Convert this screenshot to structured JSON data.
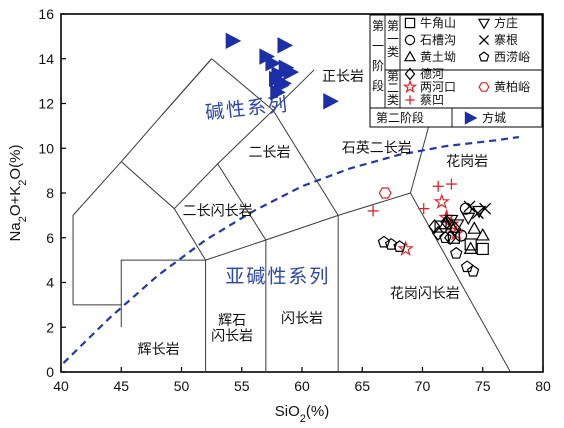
{
  "chart_data": {
    "type": "scatter",
    "title": "",
    "xlabel": "SiO2(%)",
    "ylabel": "Na2O+K2O(%)",
    "xlim": [
      40,
      80
    ],
    "ylim": [
      0,
      16
    ],
    "x_ticks": [
      40,
      45,
      50,
      55,
      60,
      65,
      70,
      75,
      80
    ],
    "y_ticks": [
      0,
      2,
      4,
      6,
      8,
      10,
      12,
      14,
      16
    ],
    "grid": false,
    "legend_position": "top-right",
    "field_labels": [
      {
        "text": "正长岩",
        "x": 63.4,
        "y": 13.0
      },
      {
        "text": "二长岩",
        "x": 57.3,
        "y": 9.6
      },
      {
        "text": "石英二长岩",
        "x": 66.2,
        "y": 9.8
      },
      {
        "text": "花岗岩",
        "x": 73.7,
        "y": 9.2
      },
      {
        "text": "二长闪长岩",
        "x": 53.0,
        "y": 7.0
      },
      {
        "text": "花岗闪长岩",
        "x": 70.2,
        "y": 3.3
      },
      {
        "text": "闪长岩",
        "x": 60.0,
        "y": 2.2
      },
      {
        "text": "辉石",
        "x": 54.2,
        "y": 2.1
      },
      {
        "text": "闪长岩",
        "x": 54.2,
        "y": 1.4
      },
      {
        "text": "辉长岩",
        "x": 48.1,
        "y": 0.8
      }
    ],
    "series_labels": [
      {
        "text": "碱性系列",
        "x": 55.5,
        "y": 11.5,
        "rotate": -6
      },
      {
        "text": "亚碱性系列",
        "x": 58.0,
        "y": 4.0,
        "rotate": 0
      }
    ],
    "alkaline_divider": [
      [
        40.2,
        0.4
      ],
      [
        44,
        2.4
      ],
      [
        48,
        4.3
      ],
      [
        52,
        5.9
      ],
      [
        56,
        7.2
      ],
      [
        60,
        8.3
      ],
      [
        64,
        9.1
      ],
      [
        68,
        9.7
      ],
      [
        72,
        10.1
      ],
      [
        76,
        10.35
      ],
      [
        78,
        10.5
      ]
    ],
    "field_boundaries": [
      [
        [
          41,
          3
        ],
        [
          41,
          7
        ],
        [
          45,
          9.4
        ],
        [
          48.4,
          11.5
        ],
        [
          52.5,
          14
        ]
      ],
      [
        [
          45,
          2
        ],
        [
          45,
          5
        ],
        [
          52,
          5
        ],
        [
          57,
          5.9
        ],
        [
          63,
          7
        ],
        [
          69,
          8
        ]
      ],
      [
        [
          45,
          9.4
        ],
        [
          49.4,
          7.3
        ],
        [
          53,
          9.3
        ],
        [
          57.6,
          11.7
        ],
        [
          61,
          13.5
        ]
      ],
      [
        [
          49.4,
          7.3
        ],
        [
          52,
          5
        ]
      ],
      [
        [
          53,
          9.3
        ],
        [
          57,
          5.9
        ]
      ],
      [
        [
          57.6,
          11.7
        ],
        [
          63,
          7
        ]
      ],
      [
        [
          52,
          0
        ],
        [
          52,
          5
        ]
      ],
      [
        [
          57,
          0
        ],
        [
          57,
          5.9
        ]
      ],
      [
        [
          63,
          0
        ],
        [
          63,
          7
        ]
      ],
      [
        [
          69,
          8
        ],
        [
          71.8,
          13.5
        ]
      ],
      [
        [
          69,
          8
        ],
        [
          77.3,
          0
        ]
      ],
      [
        [
          41,
          3
        ],
        [
          45,
          3
        ]
      ],
      [
        [
          48.4,
          11.5
        ],
        [
          52.5,
          14
        ]
      ],
      [
        [
          52.5,
          14
        ],
        [
          57.6,
          11.7
        ]
      ]
    ],
    "legend": {
      "stage1_label": "第一阶段",
      "subclass1_label": "第一类",
      "subclass2_label": "第二类",
      "stage2_label": "第二阶段",
      "entries": [
        {
          "name": "牛角山",
          "marker": "square",
          "color": "#000000"
        },
        {
          "name": "方庄",
          "marker": "triangle-down",
          "color": "#000000"
        },
        {
          "name": "石槽沟",
          "marker": "circle",
          "color": "#000000"
        },
        {
          "name": "寨根",
          "marker": "x",
          "color": "#000000"
        },
        {
          "name": "黄土坳",
          "marker": "triangle-up",
          "color": "#000000"
        },
        {
          "name": "西涝峪",
          "marker": "pentagon",
          "color": "#000000"
        },
        {
          "name": "德河",
          "marker": "diamond",
          "color": "#000000"
        },
        {
          "name": "两河口",
          "marker": "star",
          "color": "#d9262b"
        },
        {
          "name": "黄柏峪",
          "marker": "hexagon",
          "color": "#d9262b"
        },
        {
          "name": "蔡凹",
          "marker": "plus",
          "color": "#d9262b"
        },
        {
          "name": "方城",
          "marker": "triangle-right",
          "color": "#1c2fa8"
        }
      ]
    },
    "series": [
      {
        "name": "方城",
        "marker": "triangle-right",
        "color": "#1c2fa8",
        "x": [
          54.2,
          57.0,
          57.5,
          58.0,
          58.5,
          57.8,
          58.2,
          58.6,
          57.9,
          58.4,
          59.0,
          62.3
        ],
        "y": [
          14.8,
          14.1,
          13.8,
          13.3,
          14.6,
          13.1,
          12.8,
          13.6,
          12.5,
          12.9,
          13.4,
          12.1
        ]
      },
      {
        "name": "两河口",
        "marker": "star",
        "color": "#d9262b",
        "x": [
          68.6,
          71.6,
          72.0,
          72.4,
          72.8
        ],
        "y": [
          5.5,
          7.6,
          6.9,
          6.6,
          6.2
        ]
      },
      {
        "name": "蔡凹",
        "marker": "plus",
        "color": "#d9262b",
        "x": [
          65.9,
          70.1,
          71.3,
          72.4,
          72.0
        ],
        "y": [
          7.2,
          7.3,
          8.3,
          8.4,
          7.0
        ]
      },
      {
        "name": "黄柏峪",
        "marker": "hexagon",
        "color": "#d9262b",
        "x": [
          66.9
        ],
        "y": [
          8.0
        ]
      },
      {
        "name": "牛角山",
        "marker": "square",
        "color": "#000000",
        "x": [
          71.5,
          72.6,
          74.0,
          75.0
        ],
        "y": [
          6.5,
          6.0,
          5.7,
          5.5
        ]
      },
      {
        "name": "方庄",
        "marker": "triangle-down",
        "color": "#000000",
        "x": [
          72.4,
          72.9,
          73.8,
          74.7
        ],
        "y": [
          6.8,
          6.6,
          6.9,
          7.2
        ]
      },
      {
        "name": "石槽沟",
        "marker": "circle",
        "color": "#000000",
        "x": [
          73.2,
          73.6
        ],
        "y": [
          6.1,
          7.3
        ]
      },
      {
        "name": "寨根",
        "marker": "x",
        "color": "#000000",
        "x": [
          74.6,
          75.2,
          73.9
        ],
        "y": [
          7.1,
          7.3,
          7.4
        ]
      },
      {
        "name": "黄土坳",
        "marker": "triangle-up",
        "color": "#000000",
        "x": [
          71.9,
          74.0,
          74.3,
          75.0
        ],
        "y": [
          6.6,
          5.5,
          6.4,
          6.1
        ]
      },
      {
        "name": "西涝峪",
        "marker": "pentagon",
        "color": "#000000",
        "x": [
          66.8,
          67.4,
          68.1,
          71.9,
          72.8,
          73.7,
          74.2
        ],
        "y": [
          5.8,
          5.7,
          5.6,
          6.0,
          5.3,
          4.7,
          4.5
        ]
      },
      {
        "name": "德河",
        "marker": "diamond",
        "color": "#000000",
        "x": [
          71.0,
          71.3,
          72.0,
          72.3,
          72.7
        ],
        "y": [
          6.5,
          6.2,
          6.7,
          6.0,
          6.4
        ]
      }
    ]
  }
}
